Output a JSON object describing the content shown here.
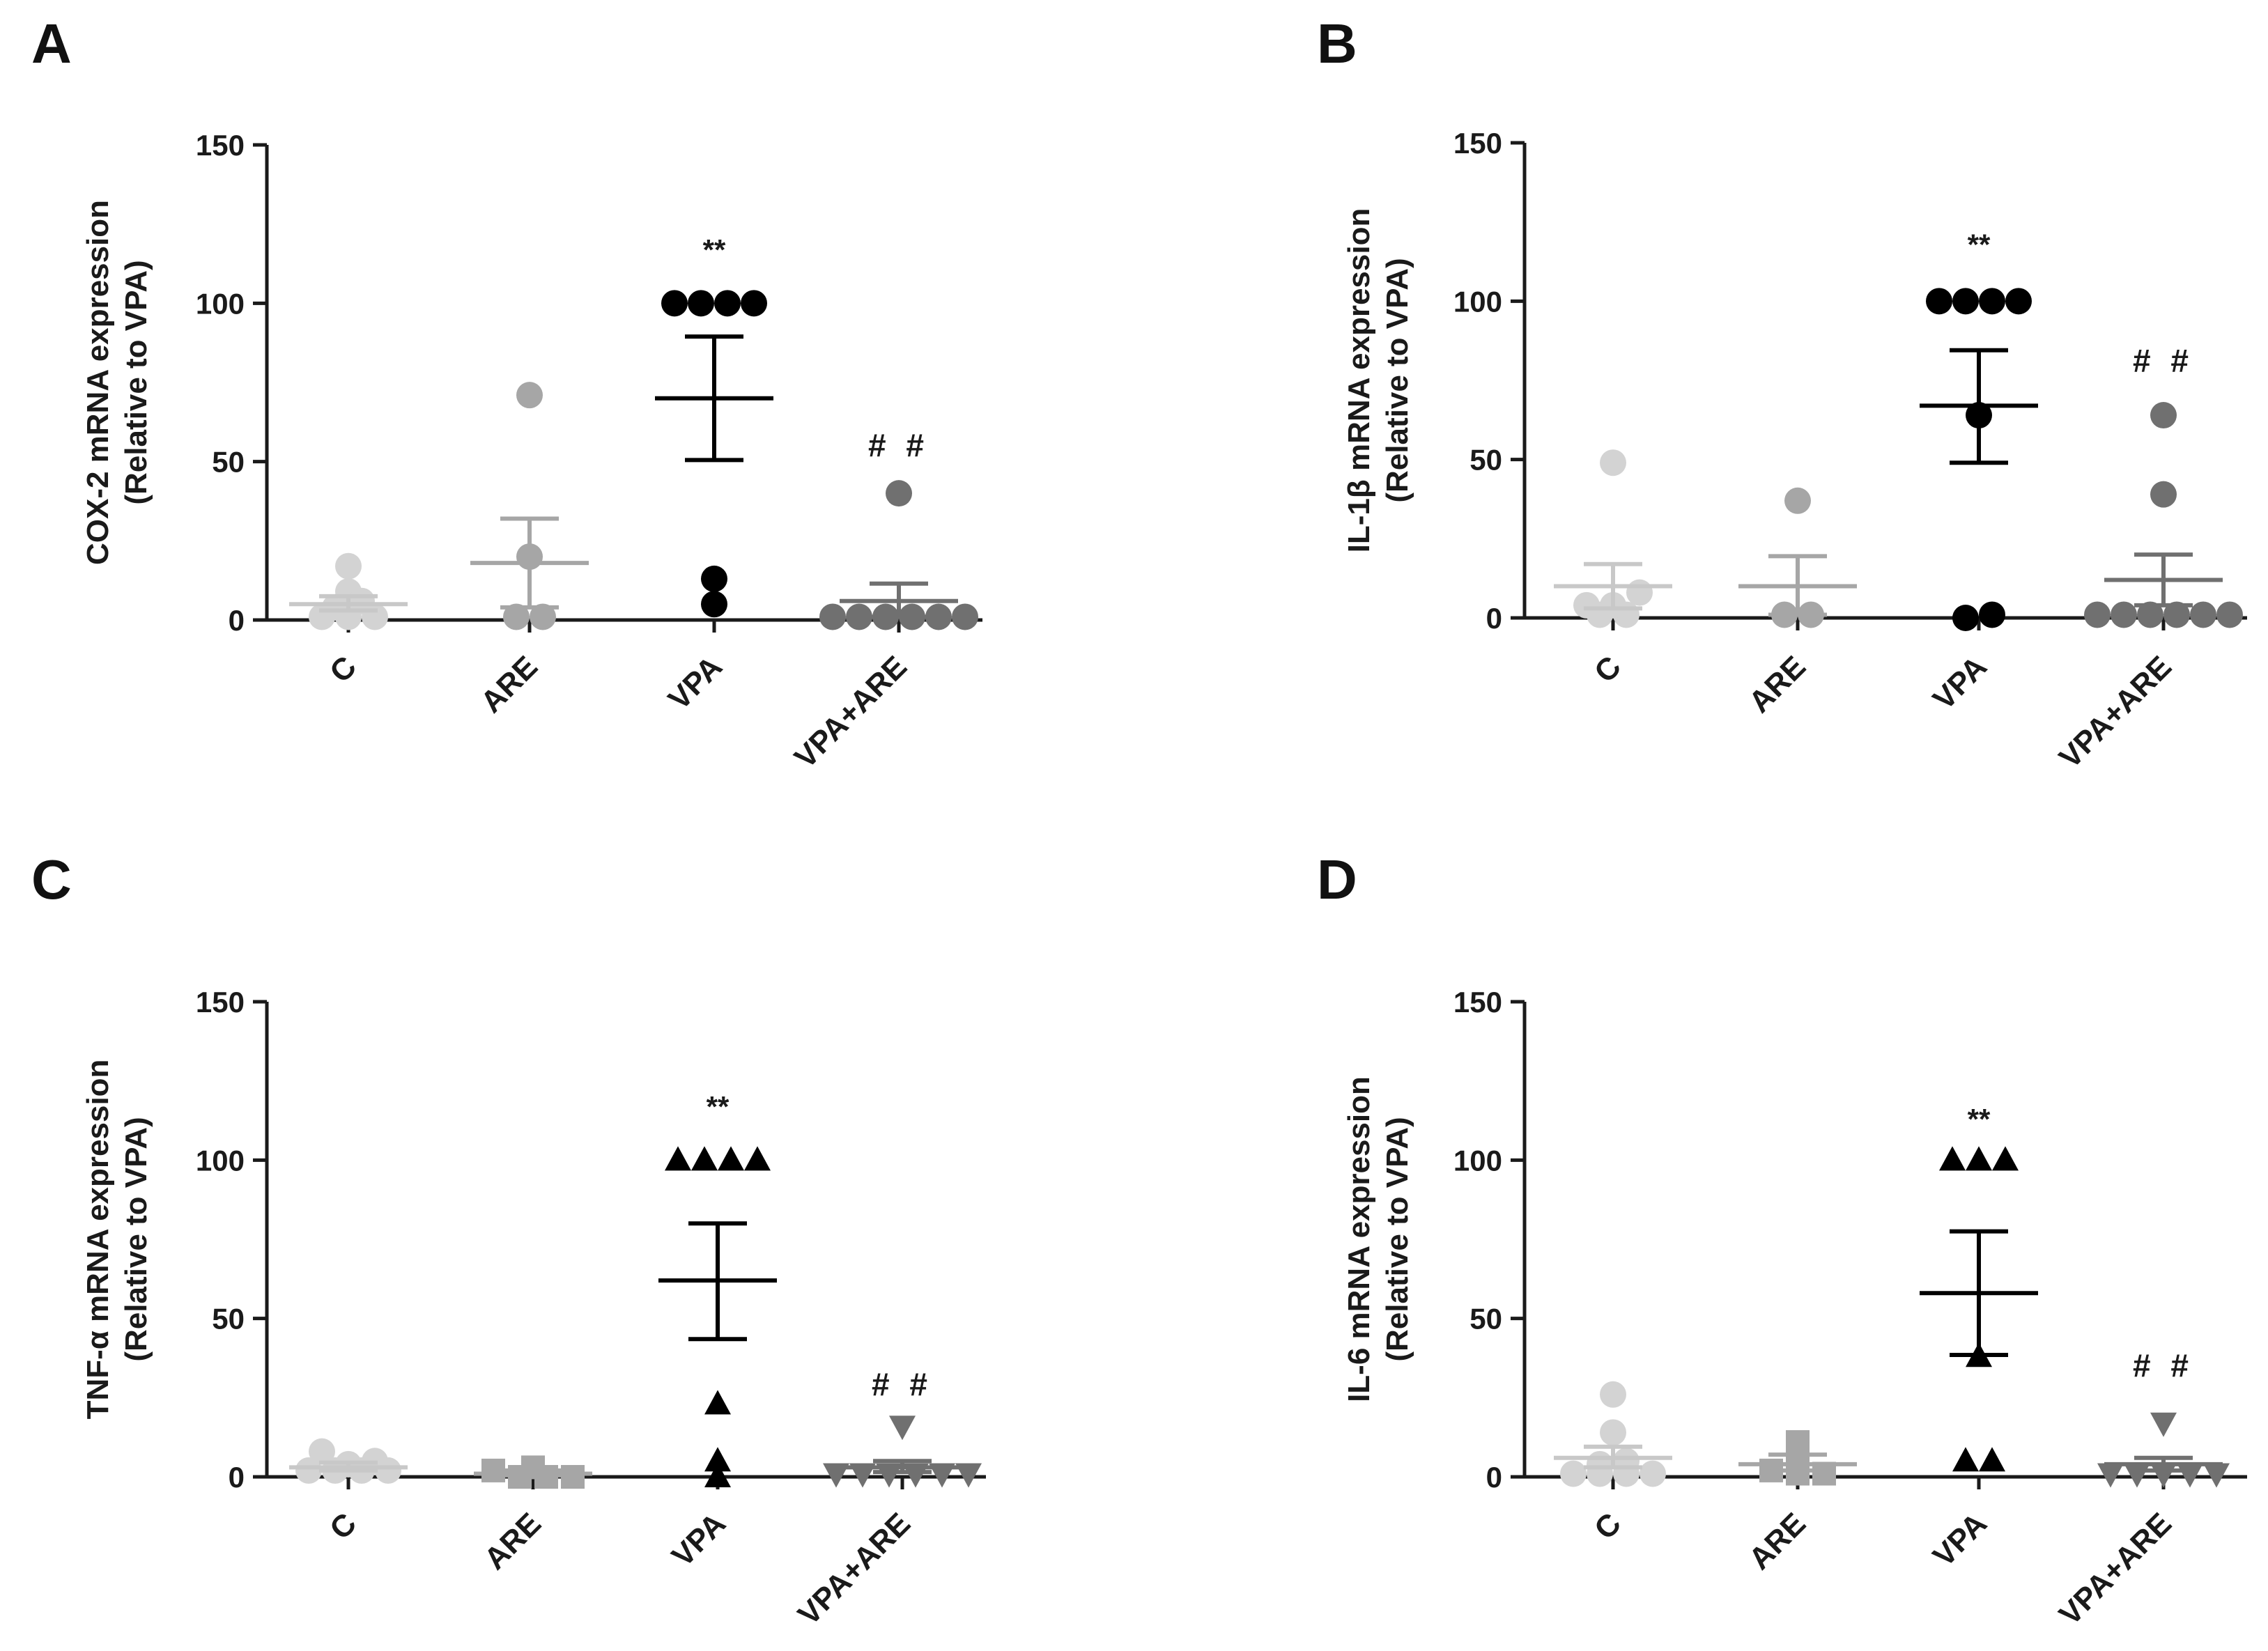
{
  "chart_data": [
    {
      "panel": "A",
      "type": "scatter",
      "ylabel_line1": "COX-2 mRNA expression",
      "ylabel_line2": "(Relative to VPA)",
      "ylim": [
        0,
        150
      ],
      "yticks": [
        0,
        50,
        100,
        150
      ],
      "categories": [
        "C",
        "ARE",
        "VPA",
        "VPA+ARE"
      ],
      "groups": [
        {
          "name": "C",
          "marker": "circle",
          "color": "#d3d3d3",
          "mean": 5,
          "sem_low": 3,
          "sem_high": 7.5,
          "points": [
            4,
            1,
            1,
            1,
            17,
            9,
            6
          ]
        },
        {
          "name": "ARE",
          "marker": "circle",
          "color": "#a6a6a6",
          "mean": 18,
          "sem_low": 4,
          "sem_high": 32,
          "points": [
            1,
            71,
            1,
            20
          ]
        },
        {
          "name": "VPA",
          "marker": "circle",
          "color": "#000000",
          "mean": 70,
          "sem_low": 50.5,
          "sem_high": 89.5,
          "points": [
            100,
            100,
            100,
            100,
            5,
            13
          ]
        },
        {
          "name": "VPA+ARE",
          "marker": "circle",
          "color": "#707070",
          "mean": 6,
          "sem_low": 1,
          "sem_high": 11.5,
          "points": [
            1,
            1,
            1,
            1,
            1,
            1,
            40
          ]
        }
      ],
      "annotations": [
        {
          "group": "VPA",
          "text": "**",
          "y": 117
        },
        {
          "group": "VPA+ARE",
          "text": "##",
          "y": 55
        }
      ]
    },
    {
      "panel": "B",
      "type": "scatter",
      "ylabel_line1": "IL-1β mRNA expression",
      "ylabel_line2": "(Relative to VPA)",
      "ylim": [
        0,
        150
      ],
      "yticks": [
        0,
        50,
        100,
        150
      ],
      "categories": [
        "C",
        "ARE",
        "VPA",
        "VPA+ARE"
      ],
      "groups": [
        {
          "name": "C",
          "marker": "circle",
          "color": "#d3d3d3",
          "mean": 10,
          "sem_low": 3,
          "sem_high": 17,
          "points": [
            4,
            1,
            1,
            49,
            4,
            8
          ]
        },
        {
          "name": "ARE",
          "marker": "circle",
          "color": "#a6a6a6",
          "mean": 10,
          "sem_low": 1,
          "sem_high": 19.5,
          "points": [
            1,
            37,
            1
          ]
        },
        {
          "name": "VPA",
          "marker": "circle",
          "color": "#000000",
          "mean": 67,
          "sem_low": 49,
          "sem_high": 84.5,
          "points": [
            100,
            100,
            100,
            100,
            64,
            0,
            1
          ]
        },
        {
          "name": "VPA+ARE",
          "marker": "circle",
          "color": "#707070",
          "mean": 12,
          "sem_low": 4,
          "sem_high": 20,
          "points": [
            64,
            39,
            1,
            1,
            1,
            1,
            1,
            1
          ]
        }
      ],
      "annotations": [
        {
          "group": "VPA",
          "text": "**",
          "y": 118
        },
        {
          "group": "VPA+ARE",
          "text": "##",
          "y": 81
        }
      ]
    },
    {
      "panel": "C",
      "type": "scatter",
      "ylabel_line1": "TNF-α mRNA expression",
      "ylabel_line2": "(Relative to VPA)",
      "ylim": [
        0,
        150
      ],
      "yticks": [
        0,
        50,
        100,
        150
      ],
      "categories": [
        "C",
        "ARE",
        "VPA",
        "VPA+ARE"
      ],
      "groups": [
        {
          "name": "C",
          "marker": "circle",
          "color": "#d3d3d3",
          "mean": 3,
          "sem_low": 2,
          "sem_high": 4.5,
          "points": [
            8,
            4,
            2,
            2,
            2,
            2,
            5
          ]
        },
        {
          "name": "ARE",
          "marker": "square",
          "color": "#a6a6a6",
          "mean": 1,
          "sem_low": 0.5,
          "sem_high": 2,
          "points": [
            2,
            0,
            0,
            0,
            3
          ]
        },
        {
          "name": "VPA",
          "marker": "triangle-up",
          "color": "#000000",
          "mean": 62,
          "sem_low": 43.5,
          "sem_high": 80,
          "points": [
            100,
            100,
            100,
            100,
            23,
            5,
            0
          ]
        },
        {
          "name": "VPA+ARE",
          "marker": "triangle-down",
          "color": "#707070",
          "mean": 3,
          "sem_low": 1.5,
          "sem_high": 5,
          "points": [
            16,
            1,
            1,
            1,
            1,
            1,
            1
          ]
        }
      ],
      "annotations": [
        {
          "group": "VPA",
          "text": "**",
          "y": 117
        },
        {
          "group": "VPA+ARE",
          "text": "##",
          "y": 29
        }
      ]
    },
    {
      "panel": "D",
      "type": "scatter",
      "ylabel_line1": "IL-6 mRNA expression",
      "ylabel_line2": "(Relative to VPA)",
      "ylim": [
        0,
        150
      ],
      "yticks": [
        0,
        50,
        100,
        150
      ],
      "categories": [
        "C",
        "ARE",
        "VPA",
        "VPA+ARE"
      ],
      "groups": [
        {
          "name": "C",
          "marker": "circle",
          "color": "#d3d3d3",
          "mean": 6,
          "sem_low": 3,
          "sem_high": 9.5,
          "points": [
            26,
            14,
            4,
            1,
            1,
            1,
            1,
            5
          ]
        },
        {
          "name": "ARE",
          "marker": "square",
          "color": "#a6a6a6",
          "mean": 4,
          "sem_low": 2,
          "sem_high": 7,
          "points": [
            11,
            2,
            1,
            1,
            4
          ]
        },
        {
          "name": "VPA",
          "marker": "triangle-up",
          "color": "#000000",
          "mean": 58,
          "sem_low": 38.5,
          "sem_high": 77.5,
          "points": [
            100,
            100,
            100,
            38,
            5,
            5
          ]
        },
        {
          "name": "VPA+ARE",
          "marker": "triangle-down",
          "color": "#707070",
          "mean": 4,
          "sem_low": 2,
          "sem_high": 6,
          "points": [
            17,
            1,
            1,
            1,
            1,
            1
          ]
        }
      ],
      "annotations": [
        {
          "group": "VPA",
          "text": "**",
          "y": 113
        },
        {
          "group": "VPA+ARE",
          "text": "##",
          "y": 35
        }
      ]
    }
  ]
}
